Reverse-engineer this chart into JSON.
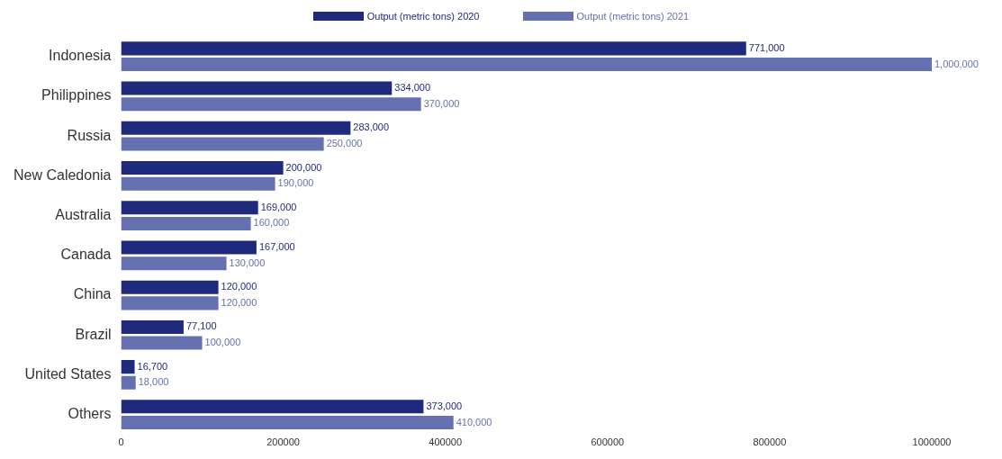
{
  "chart_data": {
    "type": "bar",
    "orientation": "horizontal",
    "categories": [
      "Indonesia",
      "Philippines",
      "Russia",
      "New Caledonia",
      "Australia",
      "Canada",
      "China",
      "Brazil",
      "United States",
      "Others"
    ],
    "series": [
      {
        "name": "Output (metric tons) 2020",
        "color": "#1f2a7c",
        "values": [
          771000,
          334000,
          283000,
          200000,
          169000,
          167000,
          120000,
          77100,
          16700,
          373000
        ],
        "value_labels": [
          "771,000",
          "334,000",
          "283,000",
          "200,000",
          "169,000",
          "167,000",
          "120,000",
          "77,100",
          "16,700",
          "373,000"
        ]
      },
      {
        "name": "Output (metric tons) 2021",
        "color": "#6570b0",
        "values": [
          1000000,
          370000,
          250000,
          190000,
          160000,
          130000,
          120000,
          100000,
          18000,
          410000
        ],
        "value_labels": [
          "1,000,000",
          "370,000",
          "250,000",
          "190,000",
          "160,000",
          "130,000",
          "120,000",
          "100,000",
          "18,000",
          "410,000"
        ]
      }
    ],
    "xlim": [
      0,
      1000000
    ],
    "xticks": [
      0,
      200000,
      400000,
      600000,
      800000,
      1000000
    ],
    "grid": false,
    "legend": "top"
  }
}
